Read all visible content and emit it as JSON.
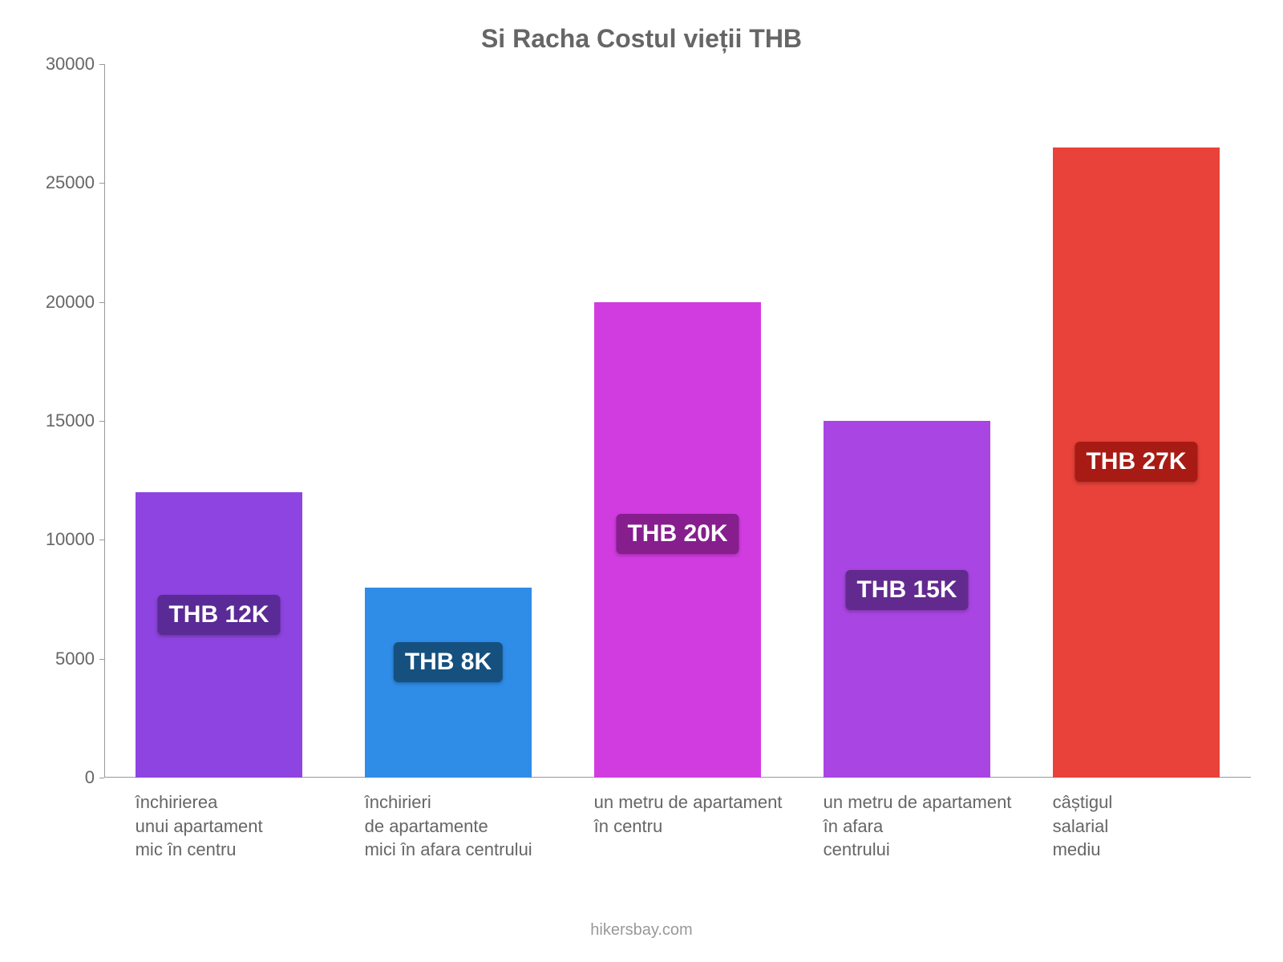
{
  "chart": {
    "type": "bar",
    "title": "Si Racha Costul vieții THB",
    "title_fontsize": 32,
    "title_color": "#666666",
    "background_color": "#ffffff",
    "axis_color": "#999999",
    "tick_label_color": "#666666",
    "tick_label_fontsize": 22,
    "attribution": "hikersbay.com",
    "attribution_color": "#999999",
    "ylim": [
      0,
      30000
    ],
    "ytick_step": 5000,
    "yticks": [
      {
        "value": 0,
        "label": "0"
      },
      {
        "value": 5000,
        "label": "5000"
      },
      {
        "value": 10000,
        "label": "10000"
      },
      {
        "value": 15000,
        "label": "15000"
      },
      {
        "value": 20000,
        "label": "20000"
      },
      {
        "value": 25000,
        "label": "25000"
      },
      {
        "value": 30000,
        "label": "30000"
      }
    ],
    "bar_width": 0.73,
    "bar_label_fontsize": 30,
    "bars": [
      {
        "category_lines": [
          "închirierea",
          "unui apartament",
          "mic în centru"
        ],
        "value": 12000,
        "display_label": "THB 12K",
        "bar_color": "#8e44e0",
        "label_bg": "#5a2a96"
      },
      {
        "category_lines": [
          "închirieri",
          "de apartamente",
          "mici în afara centrului"
        ],
        "value": 8000,
        "display_label": "THB 8K",
        "bar_color": "#2f8de8",
        "label_bg": "#15507f"
      },
      {
        "category_lines": [
          "un metru de apartament",
          "în centru"
        ],
        "value": 20000,
        "display_label": "THB 20K",
        "bar_color": "#d13ce0",
        "label_bg": "#861e8e"
      },
      {
        "category_lines": [
          "un metru de apartament",
          "în afara",
          "centrului"
        ],
        "value": 15000,
        "display_label": "THB 15K",
        "bar_color": "#a945e2",
        "label_bg": "#622a8e"
      },
      {
        "category_lines": [
          "câștigul",
          "salarial",
          "mediu"
        ],
        "value": 26500,
        "display_label": "THB 27K",
        "bar_color": "#e8423a",
        "label_bg": "#a81b14"
      }
    ]
  }
}
